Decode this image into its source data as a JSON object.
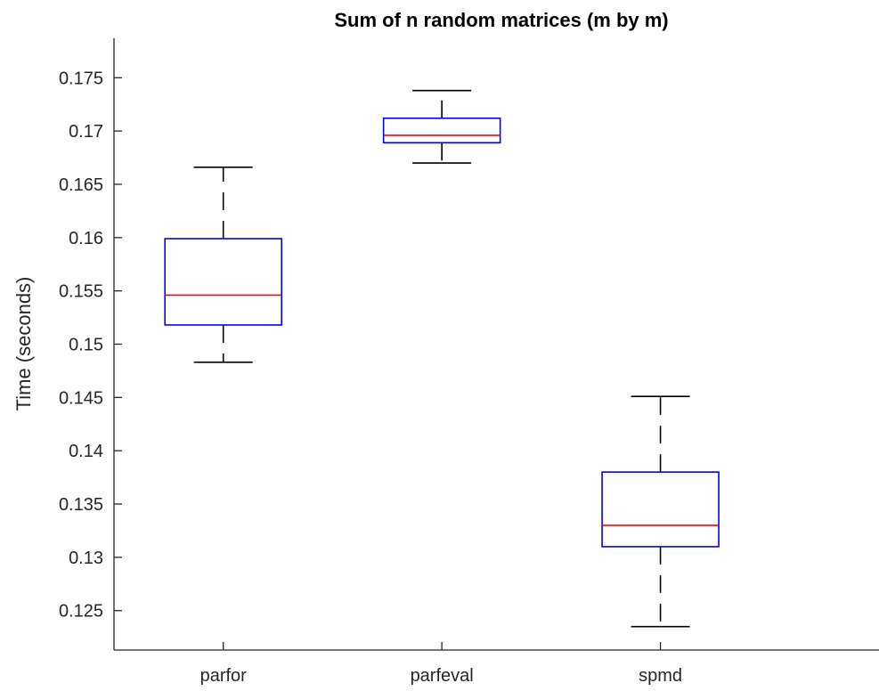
{
  "chart_data": {
    "type": "box",
    "title": "Sum of n random matrices (m by m)",
    "xlabel": "",
    "ylabel": "Time (seconds)",
    "ylim": [
      0.1213,
      0.1787
    ],
    "yticks": [
      0.125,
      0.13,
      0.135,
      0.14,
      0.145,
      0.15,
      0.155,
      0.16,
      0.165,
      0.17,
      0.175
    ],
    "ytick_labels": [
      "0.125",
      "0.13",
      "0.135",
      "0.14",
      "0.145",
      "0.15",
      "0.155",
      "0.16",
      "0.165",
      "0.17",
      "0.175"
    ],
    "categories": [
      "parfor",
      "parfeval",
      "spmd"
    ],
    "boxes": [
      {
        "category": "parfor",
        "whisker_low": 0.1483,
        "q1": 0.1518,
        "median": 0.1546,
        "q3": 0.1599,
        "whisker_high": 0.1666
      },
      {
        "category": "parfeval",
        "whisker_low": 0.167,
        "q1": 0.1689,
        "median": 0.1696,
        "q3": 0.1712,
        "whisker_high": 0.1738
      },
      {
        "category": "spmd",
        "whisker_low": 0.1235,
        "q1": 0.131,
        "median": 0.133,
        "q3": 0.138,
        "whisker_high": 0.1451
      }
    ],
    "grid": false,
    "legend": "none"
  },
  "colors": {
    "box": "#0000ff",
    "median": "#ff0000",
    "whisker": "#000000",
    "axis": "#262626"
  }
}
